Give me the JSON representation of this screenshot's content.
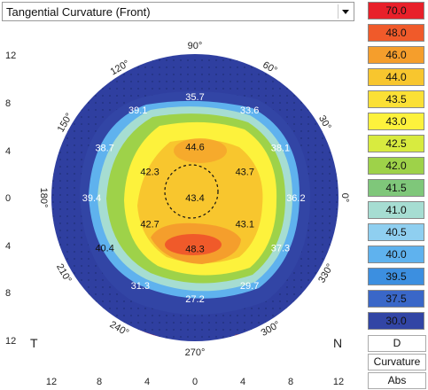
{
  "map_selector": {
    "value": "Tangential Curvature (Front)"
  },
  "map": {
    "angles": [
      "90°",
      "60°",
      "30°",
      "0°",
      "330°",
      "300°",
      "270°",
      "240°",
      "210°",
      "180°",
      "150°",
      "120°"
    ],
    "side_left": "T",
    "side_right": "N",
    "y_ticks": [
      "12",
      "8",
      "4",
      "0",
      "4",
      "8",
      "12"
    ],
    "x_ticks": [
      "12",
      "8",
      "4",
      "0",
      "4",
      "8",
      "12"
    ],
    "values": [
      {
        "text": "35.7",
        "x": 0,
        "y": 8.5,
        "tone": "light"
      },
      {
        "text": "39.1",
        "x": -4.8,
        "y": 7.4,
        "tone": "light"
      },
      {
        "text": "33.6",
        "x": 4.6,
        "y": 7.4,
        "tone": "light"
      },
      {
        "text": "38.7",
        "x": -7.6,
        "y": 4.2,
        "tone": "light"
      },
      {
        "text": "44.6",
        "x": 0,
        "y": 4.3,
        "tone": "dark"
      },
      {
        "text": "38.1",
        "x": 7.2,
        "y": 4.2,
        "tone": "light"
      },
      {
        "text": "42.3",
        "x": -3.8,
        "y": 2.2,
        "tone": "dark"
      },
      {
        "text": "43.7",
        "x": 4.2,
        "y": 2.2,
        "tone": "dark"
      },
      {
        "text": "39.4",
        "x": -8.7,
        "y": 0,
        "tone": "light"
      },
      {
        "text": "43.4",
        "x": 0,
        "y": 0,
        "tone": "dark"
      },
      {
        "text": "36.2",
        "x": 8.5,
        "y": 0,
        "tone": "light"
      },
      {
        "text": "42.7",
        "x": -3.8,
        "y": -2.2,
        "tone": "dark"
      },
      {
        "text": "43.1",
        "x": 4.2,
        "y": -2.2,
        "tone": "dark"
      },
      {
        "text": "40.4",
        "x": -7.6,
        "y": -4.2,
        "tone": "dark"
      },
      {
        "text": "48.3",
        "x": 0,
        "y": -4.3,
        "tone": "dark"
      },
      {
        "text": "37.3",
        "x": 7.2,
        "y": -4.2,
        "tone": "light"
      },
      {
        "text": "31.3",
        "x": -4.6,
        "y": -7.4,
        "tone": "light"
      },
      {
        "text": "29.7",
        "x": 4.6,
        "y": -7.4,
        "tone": "light"
      },
      {
        "text": "27.2",
        "x": 0,
        "y": -8.5,
        "tone": "light"
      }
    ]
  },
  "scale": {
    "levels": [
      {
        "label": "70.0",
        "color": "#e8202a"
      },
      {
        "label": "48.0",
        "color": "#f05a2a"
      },
      {
        "label": "46.0",
        "color": "#f59e2c"
      },
      {
        "label": "44.0",
        "color": "#f8c62e"
      },
      {
        "label": "43.5",
        "color": "#fbe035"
      },
      {
        "label": "43.0",
        "color": "#fdf23c"
      },
      {
        "label": "42.5",
        "color": "#d8eb3f"
      },
      {
        "label": "42.0",
        "color": "#9ed249"
      },
      {
        "label": "41.5",
        "color": "#7fc77a"
      },
      {
        "label": "41.0",
        "color": "#a6ddd2"
      },
      {
        "label": "40.5",
        "color": "#8fcff0"
      },
      {
        "label": "40.0",
        "color": "#5fb2ee"
      },
      {
        "label": "39.5",
        "color": "#3c8fe0"
      },
      {
        "label": "37.5",
        "color": "#3a67c8"
      },
      {
        "label": "30.0",
        "color": "#3245a5"
      }
    ],
    "unit": "D",
    "mode": "Curvature",
    "type": "Abs"
  }
}
